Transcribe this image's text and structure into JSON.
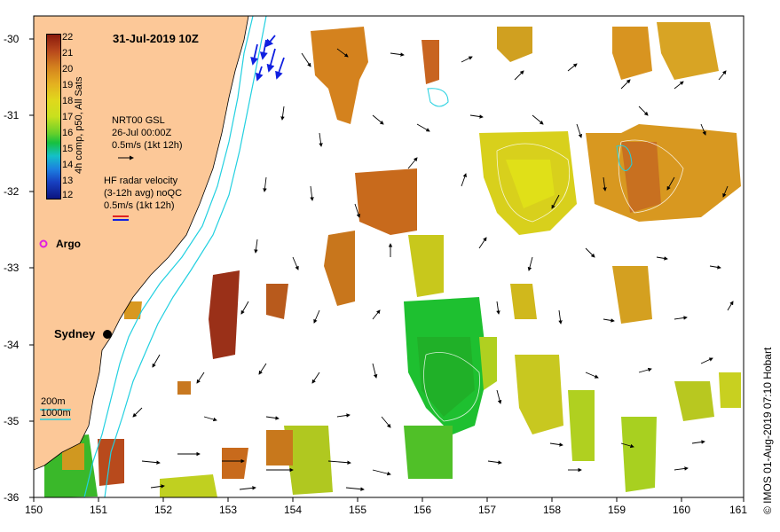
{
  "title": "31-Jul-2019 10Z",
  "colorbar": {
    "label": "4h comp, p50, All Sats",
    "ticks": [
      "22",
      "21",
      "20",
      "19",
      "18",
      "17",
      "16",
      "15",
      "14",
      "13",
      "12"
    ]
  },
  "legend": {
    "gsl": {
      "line1": "NRT00 GSL",
      "line2": "26-Jul 00:00Z",
      "line3": "0.5m/s (1kt 12h)"
    },
    "hf": {
      "line1": "HF radar velocity",
      "line2": "(3-12h avg) noQC",
      "line3": "0.5m/s (1kt 12h)"
    },
    "argo": "Argo",
    "depth200": "200m",
    "depth1000": "1000m"
  },
  "places": {
    "sydney": "Sydney"
  },
  "axes": {
    "x_ticks": [
      "150",
      "151",
      "152",
      "153",
      "154",
      "155",
      "156",
      "157",
      "158",
      "159",
      "160",
      "161"
    ],
    "y_ticks": [
      "-30",
      "-31",
      "-32",
      "-33",
      "-34",
      "-35",
      "-36"
    ]
  },
  "credit": "© IMOS 01-Aug-2019 07:10 Hobart",
  "colors": {
    "land": "#fcc898",
    "cyan": "#22d0e0",
    "argo": "#e020e0",
    "hf_red": "#e02020",
    "hf_blue": "#2020e0"
  }
}
